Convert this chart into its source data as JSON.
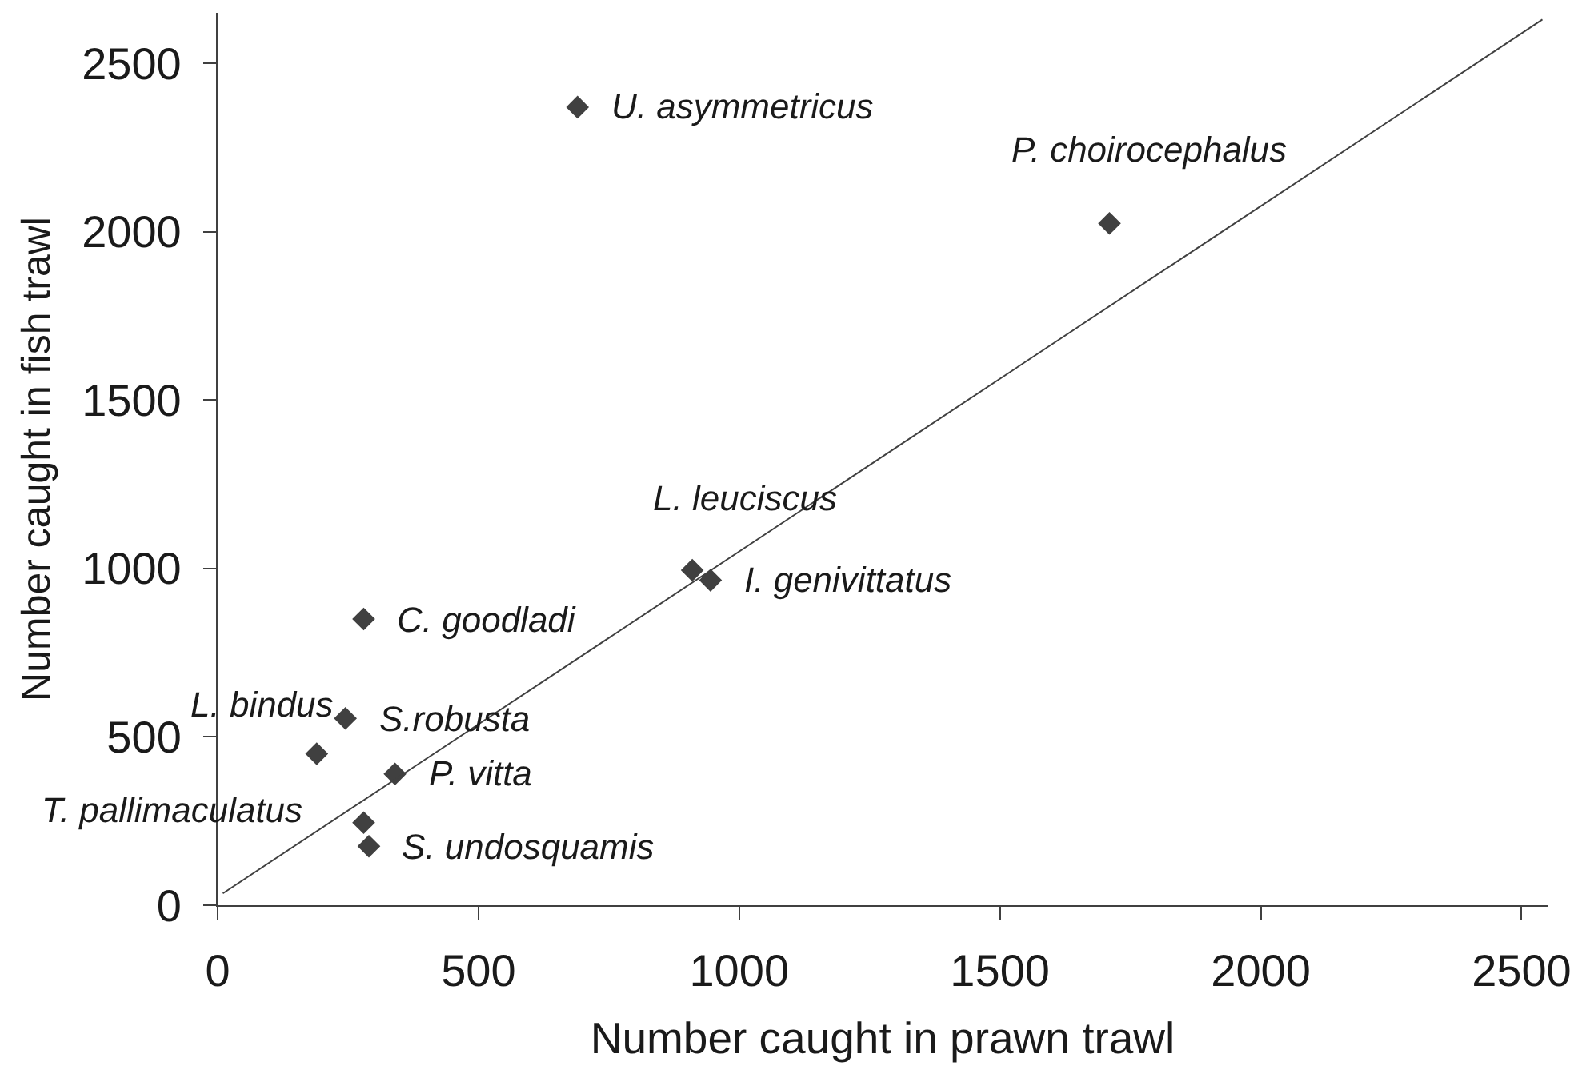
{
  "chart_data": {
    "type": "scatter",
    "xlabel": "Number caught in prawn trawl",
    "ylabel": "Number caught in fish trawl",
    "xlim": [
      0,
      2550
    ],
    "ylim": [
      0,
      2650
    ],
    "xticks": [
      0,
      500,
      1000,
      1500,
      2000,
      2500
    ],
    "yticks": [
      0,
      500,
      1000,
      1500,
      2000,
      2500
    ],
    "grid": false,
    "marker": "diamond",
    "series": [
      {
        "color": "#404040",
        "x": [
          690,
          1710,
          910,
          945,
          280,
          190,
          245,
          340,
          280,
          290
        ],
        "values": [
          2370,
          2025,
          995,
          965,
          850,
          450,
          555,
          390,
          245,
          175
        ]
      },
      {
        "type": "line",
        "color": "#404040",
        "marker": "none",
        "line_style": "solid",
        "x": [
          10,
          2540
        ],
        "values": [
          35,
          2630
        ]
      }
    ],
    "annotations": [
      {
        "text": "U. asymmetricus",
        "x": 690,
        "y": 2370
      },
      {
        "text": "P. choirocephalus",
        "x": 1710,
        "y": 2025
      },
      {
        "text": "L. leuciscus",
        "x": 910,
        "y": 995
      },
      {
        "text": "I. genivittatus",
        "x": 945,
        "y": 965
      },
      {
        "text": "C. goodladi",
        "x": 280,
        "y": 850
      },
      {
        "text": "L. bindus",
        "x": 190,
        "y": 450
      },
      {
        "text": "S.robusta",
        "x": 245,
        "y": 555
      },
      {
        "text": "P. vitta",
        "x": 340,
        "y": 390
      },
      {
        "text": "T. pallimaculatus",
        "x": 280,
        "y": 245
      },
      {
        "text": "S. undosquamis",
        "x": 290,
        "y": 175
      }
    ]
  }
}
